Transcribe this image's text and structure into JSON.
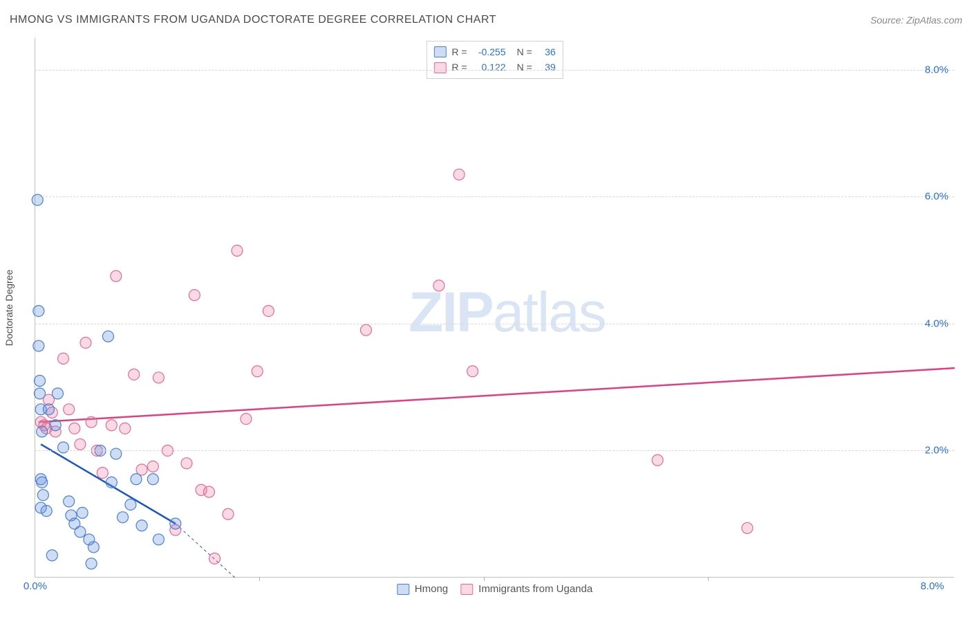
{
  "title": "HMONG VS IMMIGRANTS FROM UGANDA DOCTORATE DEGREE CORRELATION CHART",
  "source": "Source: ZipAtlas.com",
  "watermark_zip": "ZIP",
  "watermark_atlas": "atlas",
  "ylabel": "Doctorate Degree",
  "chart": {
    "type": "scatter",
    "xlim": [
      0,
      8.2
    ],
    "ylim": [
      0,
      8.5
    ],
    "xticks_labels": [
      {
        "pos": 0.0,
        "label": "0.0%"
      },
      {
        "pos": 8.0,
        "label": "8.0%"
      }
    ],
    "xticks_marks": [
      2.0,
      4.0,
      6.0
    ],
    "yticks": [
      {
        "pos": 2.0,
        "label": "2.0%"
      },
      {
        "pos": 4.0,
        "label": "4.0%"
      },
      {
        "pos": 6.0,
        "label": "6.0%"
      },
      {
        "pos": 8.0,
        "label": "8.0%"
      }
    ],
    "grid_color": "#d8d8d8",
    "background_color": "#ffffff",
    "marker_radius": 8,
    "marker_stroke_width": 1.2,
    "line_width": 2.5
  },
  "series": [
    {
      "name": "Hmong",
      "fill": "rgba(92,140,220,0.30)",
      "stroke": "#4a7fd6",
      "line_color": "#1a56c4",
      "R_label": "R =",
      "R": "-0.255",
      "N_label": "N =",
      "N": "36",
      "trend": {
        "x1": 0.05,
        "y1": 2.1,
        "x2": 1.25,
        "y2": 0.85
      },
      "trend_dashed_ext": {
        "x1": 1.25,
        "y1": 0.85,
        "x2": 1.78,
        "y2": 0.0
      },
      "points": [
        [
          0.02,
          5.95
        ],
        [
          0.03,
          4.2
        ],
        [
          0.03,
          3.65
        ],
        [
          0.04,
          3.1
        ],
        [
          0.05,
          2.65
        ],
        [
          0.04,
          2.9
        ],
        [
          0.06,
          2.3
        ],
        [
          0.05,
          1.55
        ],
        [
          0.06,
          1.5
        ],
        [
          0.07,
          1.3
        ],
        [
          0.05,
          1.1
        ],
        [
          0.1,
          1.05
        ],
        [
          0.12,
          2.65
        ],
        [
          0.18,
          2.4
        ],
        [
          0.2,
          2.9
        ],
        [
          0.25,
          2.05
        ],
        [
          0.3,
          1.2
        ],
        [
          0.32,
          0.98
        ],
        [
          0.35,
          0.85
        ],
        [
          0.4,
          0.72
        ],
        [
          0.42,
          1.02
        ],
        [
          0.48,
          0.6
        ],
        [
          0.5,
          0.22
        ],
        [
          0.52,
          0.48
        ],
        [
          0.58,
          2.0
        ],
        [
          0.65,
          3.8
        ],
        [
          0.68,
          1.5
        ],
        [
          0.72,
          1.95
        ],
        [
          0.78,
          0.95
        ],
        [
          0.85,
          1.15
        ],
        [
          0.9,
          1.55
        ],
        [
          0.95,
          0.82
        ],
        [
          1.05,
          1.55
        ],
        [
          1.1,
          0.6
        ],
        [
          1.25,
          0.85
        ],
        [
          0.15,
          0.35
        ]
      ]
    },
    {
      "name": "Immigrants from Uganda",
      "fill": "rgba(235,120,155,0.28)",
      "stroke": "#e36b96",
      "line_color": "#e13f80",
      "R_label": "R =",
      "R": "0.122",
      "N_label": "N =",
      "N": "39",
      "trend": {
        "x1": 0.03,
        "y1": 2.45,
        "x2": 8.2,
        "y2": 3.3
      },
      "points": [
        [
          0.05,
          2.45
        ],
        [
          0.08,
          2.4
        ],
        [
          0.1,
          2.35
        ],
        [
          0.12,
          2.8
        ],
        [
          0.15,
          2.6
        ],
        [
          0.18,
          2.3
        ],
        [
          0.25,
          3.45
        ],
        [
          0.3,
          2.65
        ],
        [
          0.35,
          2.35
        ],
        [
          0.45,
          3.7
        ],
        [
          0.5,
          2.45
        ],
        [
          0.55,
          2.0
        ],
        [
          0.6,
          1.65
        ],
        [
          0.68,
          2.4
        ],
        [
          0.72,
          4.75
        ],
        [
          0.8,
          2.35
        ],
        [
          0.88,
          3.2
        ],
        [
          0.95,
          1.7
        ],
        [
          1.05,
          1.75
        ],
        [
          1.1,
          3.15
        ],
        [
          1.18,
          2.0
        ],
        [
          1.25,
          0.75
        ],
        [
          1.35,
          1.8
        ],
        [
          1.42,
          4.45
        ],
        [
          1.48,
          1.38
        ],
        [
          1.55,
          1.35
        ],
        [
          1.6,
          0.3
        ],
        [
          1.72,
          1.0
        ],
        [
          1.8,
          5.15
        ],
        [
          1.88,
          2.5
        ],
        [
          1.98,
          3.25
        ],
        [
          2.08,
          4.2
        ],
        [
          2.95,
          3.9
        ],
        [
          3.6,
          4.6
        ],
        [
          3.78,
          6.35
        ],
        [
          3.9,
          3.25
        ],
        [
          5.55,
          1.85
        ],
        [
          6.35,
          0.78
        ],
        [
          0.4,
          2.1
        ]
      ]
    }
  ],
  "legend_bottom_series": [
    {
      "label": "Hmong",
      "fill": "rgba(92,140,220,0.30)",
      "stroke": "#4a7fd6"
    },
    {
      "label": "Immigrants from Uganda",
      "fill": "rgba(235,120,155,0.28)",
      "stroke": "#e36b96"
    }
  ]
}
